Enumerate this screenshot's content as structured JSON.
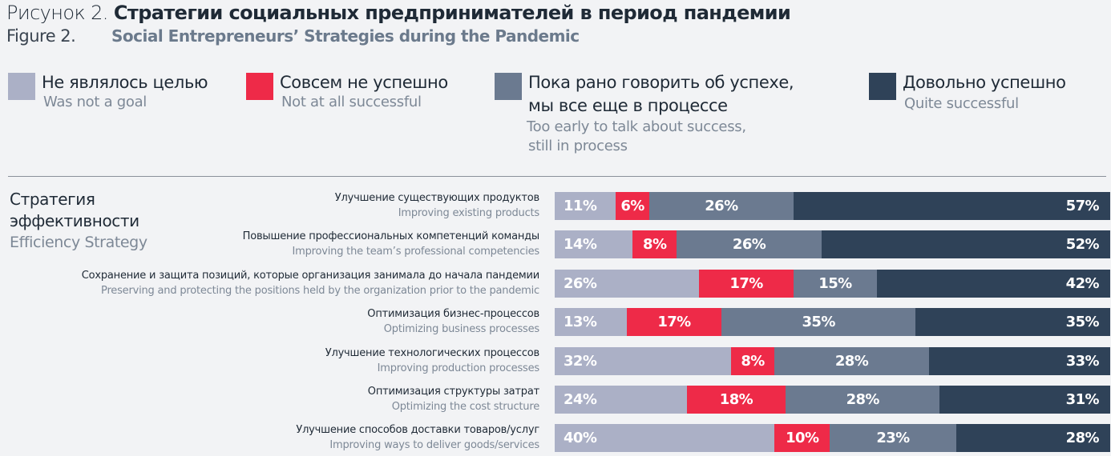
{
  "title": {
    "prefix_ru": "Рисунок 2.",
    "text_ru": "Стратегии социальных предпринимателей в период пандемии",
    "prefix_en": "Figure 2.",
    "text_en": "Social Entrepreneurs’ Strategies during the Pandemic"
  },
  "chart_data": {
    "type": "bar",
    "orientation": "horizontal",
    "stacked": true,
    "unit": "%",
    "section": {
      "ru": "Стратегия эффективности",
      "en": "Efficiency Strategy"
    },
    "series": [
      {
        "name_ru": "Не являлось целью",
        "name_en": "Was not a goal",
        "color": "#abb0c6",
        "values": [
          11,
          14,
          26,
          13,
          32,
          24,
          40
        ]
      },
      {
        "name_ru": "Совсем не успешно",
        "name_en": "Not at all successful",
        "color": "#ee2a48",
        "values": [
          6,
          8,
          17,
          17,
          8,
          18,
          10
        ]
      },
      {
        "name_ru": "Пока рано говорить об успехе, мы все еще в процессе",
        "name_ru_l1": "Пока рано говорить об успехе,",
        "name_ru_l2": "мы все еще в процессе",
        "name_en": "Too early to talk about success, still in process",
        "name_en_l1": "Too early to talk about success,",
        "name_en_l2": "still in process",
        "color": "#6b7a90",
        "values": [
          26,
          26,
          15,
          35,
          28,
          28,
          23
        ]
      },
      {
        "name_ru": "Довольно успешно",
        "name_en": "Quite successful",
        "color": "#2f4258",
        "values": [
          57,
          52,
          42,
          35,
          33,
          31,
          28
        ]
      }
    ],
    "categories": [
      {
        "ru": "Улучшение существующих продуктов",
        "en": "Improving existing products"
      },
      {
        "ru": "Повышение профессиональных компетенций команды",
        "en": "Improving the team’s professional competencies"
      },
      {
        "ru": "Сохранение и защита позиций, которые организация занимала до начала пандемии",
        "en": "Preserving and protecting the positions held by the organization prior to the pandemic"
      },
      {
        "ru": "Оптимизация бизнес-процессов",
        "en": "Optimizing business processes"
      },
      {
        "ru": "Улучшение технологических процессов",
        "en": "Improving production processes"
      },
      {
        "ru": "Оптимизация структуры затрат",
        "en": "Optimizing the cost structure"
      },
      {
        "ru": "Улучшение способов доставки товаров/услуг",
        "en": "Improving ways to deliver goods/services"
      }
    ],
    "legend": "top"
  }
}
